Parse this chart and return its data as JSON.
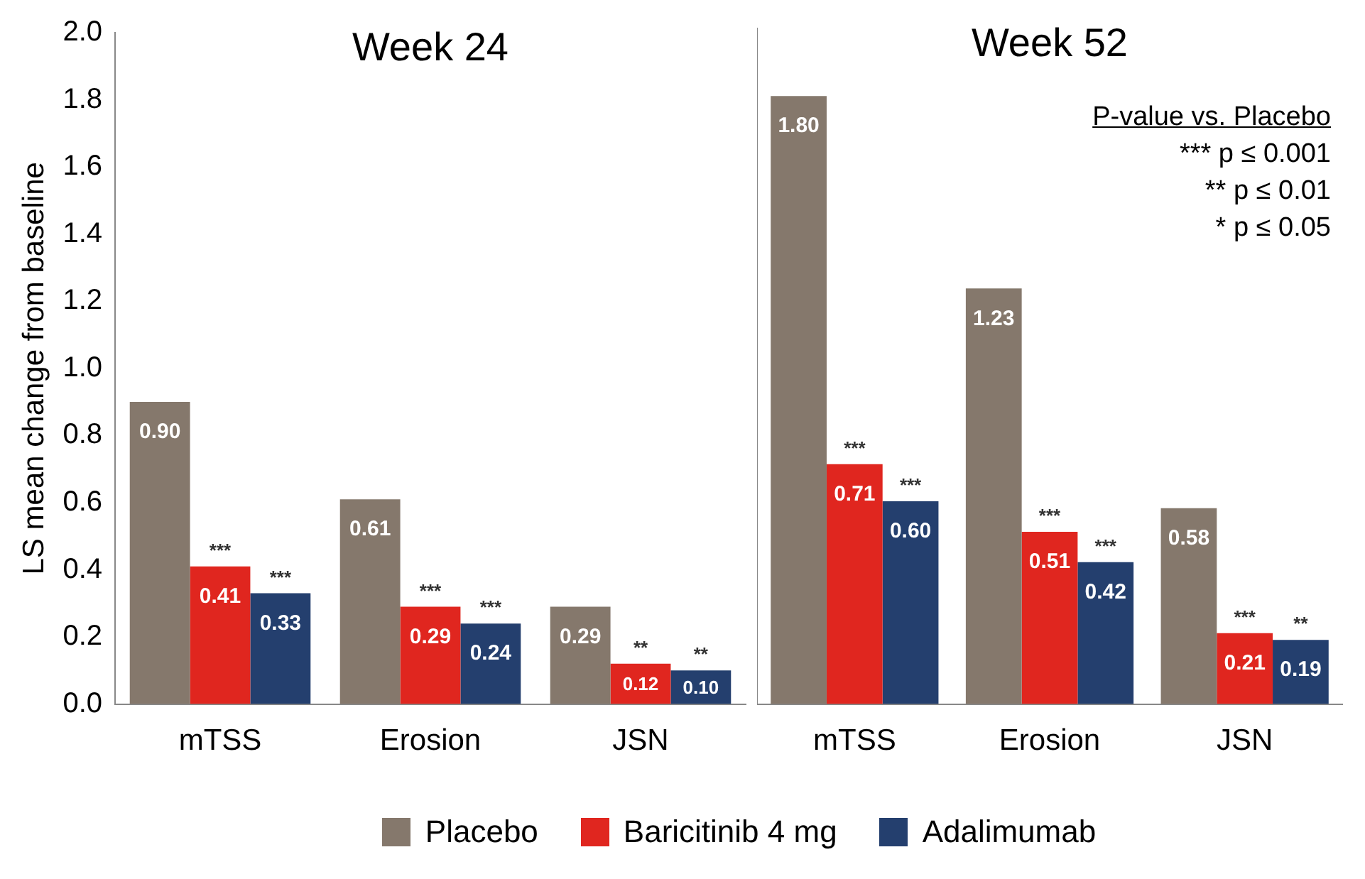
{
  "chart_data": [
    {
      "type": "bar",
      "title": "Week 24",
      "ylabel": "LS mean change from baseline",
      "categories": [
        "mTSS",
        "Erosion",
        "JSN"
      ],
      "series": [
        {
          "name": "Placebo",
          "color": "#85786c",
          "values": [
            0.9,
            0.61,
            0.29
          ],
          "value_labels": [
            "0.90",
            "0.61",
            "0.29"
          ]
        },
        {
          "name": "Baricitinib 4 mg",
          "color": "#e0261f",
          "values": [
            0.41,
            0.29,
            0.12
          ],
          "value_labels": [
            "0.41",
            "0.29",
            "0.12"
          ]
        },
        {
          "name": "Adalimumab",
          "color": "#243f6e",
          "values": [
            0.33,
            0.24,
            0.1
          ],
          "value_labels": [
            "0.33",
            "0.24",
            "0.10"
          ]
        }
      ],
      "ylim": [
        0,
        2
      ],
      "yticks": [
        {
          "value": 0,
          "label": "0.0"
        },
        {
          "value": 0.2,
          "label": "0.2"
        },
        {
          "value": 0.4,
          "label": "0.4"
        },
        {
          "value": 0.6,
          "label": "0.6"
        },
        {
          "value": 0.8,
          "label": "0.8"
        },
        {
          "value": 1,
          "label": "1.0"
        },
        {
          "value": 1.2,
          "label": "1.2"
        },
        {
          "value": 1.4,
          "label": "1.4"
        },
        {
          "value": 1.6,
          "label": "1.6"
        },
        {
          "value": 1.8,
          "label": "1.8"
        },
        {
          "value": 2,
          "label": "2.0"
        }
      ],
      "legend": "bottom",
      "annotations": [
        "***",
        "***",
        "***",
        "***",
        "**",
        "**"
      ]
    },
    {
      "type": "bar",
      "title": "Week 52",
      "categories": [
        "mTSS",
        "Erosion",
        "JSN"
      ],
      "series": [
        {
          "color": "#85786c",
          "values": [
            1.8,
            1.23,
            0.58
          ],
          "value_labels": [
            "1.80",
            "1.23",
            "0.58"
          ]
        },
        {
          "color": "#e0261f",
          "values": [
            0.71,
            0.51,
            0.21
          ],
          "value_labels": [
            "0.71",
            "0.51",
            "0.21"
          ]
        },
        {
          "color": "#243f6e",
          "values": [
            0.6,
            0.42,
            0.19
          ],
          "value_labels": [
            "0.60",
            "0.42",
            "0.19"
          ]
        }
      ],
      "ylim": [
        0,
        2
      ],
      "tick_labels": "x",
      "annotations": [
        "***",
        "***",
        "***",
        "***",
        "***",
        "**",
        "P-value vs. Placebo",
        "*** p ≤ 0.001",
        "** p ≤ 0.01",
        "* p ≤ 0.05"
      ]
    }
  ]
}
